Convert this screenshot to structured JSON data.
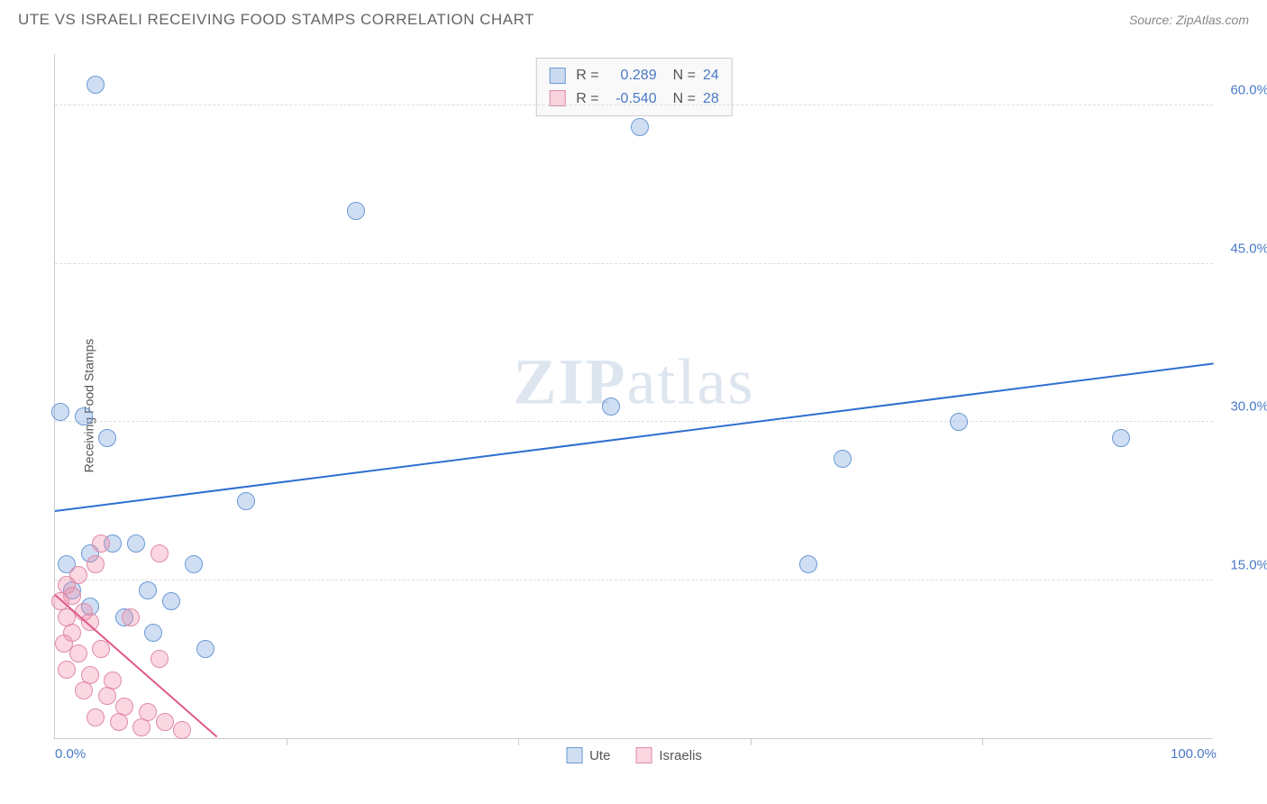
{
  "title": "UTE VS ISRAELI RECEIVING FOOD STAMPS CORRELATION CHART",
  "source": "Source: ZipAtlas.com",
  "watermark": {
    "part1": "ZIP",
    "part2": "atlas"
  },
  "chart": {
    "type": "scatter",
    "ylabel": "Receiving Food Stamps",
    "background_color": "#ffffff",
    "grid_color": "#dddddd",
    "axis_color": "#cccccc",
    "tick_label_color": "#4a7ac7",
    "xlim": [
      0,
      100
    ],
    "ylim": [
      0,
      65
    ],
    "yticks": [
      {
        "value": 15,
        "label": "15.0%"
      },
      {
        "value": 30,
        "label": "30.0%"
      },
      {
        "value": 45,
        "label": "45.0%"
      },
      {
        "value": 60,
        "label": "60.0%"
      }
    ],
    "xtick_positions": [
      20,
      40,
      60,
      80
    ],
    "xaxis_labels": [
      {
        "value": 0,
        "label": "0.0%"
      },
      {
        "value": 100,
        "label": "100.0%"
      }
    ],
    "series": [
      {
        "name": "Ute",
        "color_fill": "rgba(120,160,220,0.35)",
        "color_stroke": "#6a9ad6",
        "marker_radius": 10,
        "trend": {
          "x1": 0,
          "y1": 21.5,
          "x2": 100,
          "y2": 35.5,
          "color": "#2f6fd0",
          "width": 2
        },
        "r": "0.289",
        "n": "24",
        "points": [
          {
            "x": 0.5,
            "y": 31
          },
          {
            "x": 3.5,
            "y": 62
          },
          {
            "x": 2.5,
            "y": 30.5
          },
          {
            "x": 4.5,
            "y": 28.5
          },
          {
            "x": 26,
            "y": 50
          },
          {
            "x": 50.5,
            "y": 58
          },
          {
            "x": 48,
            "y": 31.5
          },
          {
            "x": 78,
            "y": 30
          },
          {
            "x": 68,
            "y": 26.5
          },
          {
            "x": 92,
            "y": 28.5
          },
          {
            "x": 65,
            "y": 16.5
          },
          {
            "x": 16.5,
            "y": 22.5
          },
          {
            "x": 7,
            "y": 18.5
          },
          {
            "x": 12,
            "y": 16.5
          },
          {
            "x": 3,
            "y": 17.5
          },
          {
            "x": 5,
            "y": 18.5
          },
          {
            "x": 1.5,
            "y": 14
          },
          {
            "x": 8,
            "y": 14
          },
          {
            "x": 6,
            "y": 11.5
          },
          {
            "x": 10,
            "y": 13
          },
          {
            "x": 8.5,
            "y": 10
          },
          {
            "x": 13,
            "y": 8.5
          },
          {
            "x": 3,
            "y": 12.5
          },
          {
            "x": 1,
            "y": 16.5
          }
        ]
      },
      {
        "name": "Israelis",
        "color_fill": "rgba(240,140,170,0.35)",
        "color_stroke": "#e08aa8",
        "marker_radius": 10,
        "trend": {
          "x1": 0,
          "y1": 13.5,
          "x2": 14,
          "y2": 0,
          "color": "#e05a8a",
          "width": 2
        },
        "r": "-0.540",
        "n": "28",
        "points": [
          {
            "x": 1,
            "y": 14.5
          },
          {
            "x": 1.5,
            "y": 13.5
          },
          {
            "x": 0.5,
            "y": 13
          },
          {
            "x": 2.5,
            "y": 12
          },
          {
            "x": 1,
            "y": 11.5
          },
          {
            "x": 3,
            "y": 11
          },
          {
            "x": 1.5,
            "y": 10
          },
          {
            "x": 0.8,
            "y": 9
          },
          {
            "x": 4,
            "y": 18.5
          },
          {
            "x": 3.5,
            "y": 16.5
          },
          {
            "x": 9,
            "y": 17.5
          },
          {
            "x": 6.5,
            "y": 11.5
          },
          {
            "x": 2,
            "y": 8
          },
          {
            "x": 4,
            "y": 8.5
          },
          {
            "x": 1,
            "y": 6.5
          },
          {
            "x": 3,
            "y": 6
          },
          {
            "x": 5,
            "y": 5.5
          },
          {
            "x": 2.5,
            "y": 4.5
          },
          {
            "x": 4.5,
            "y": 4
          },
          {
            "x": 6,
            "y": 3
          },
          {
            "x": 8,
            "y": 2.5
          },
          {
            "x": 3.5,
            "y": 2
          },
          {
            "x": 5.5,
            "y": 1.5
          },
          {
            "x": 7.5,
            "y": 1
          },
          {
            "x": 9.5,
            "y": 1.5
          },
          {
            "x": 11,
            "y": 0.8
          },
          {
            "x": 9,
            "y": 7.5
          },
          {
            "x": 2,
            "y": 15.5
          }
        ]
      }
    ]
  },
  "top_legend": {
    "rows": [
      {
        "swatch_fill": "rgba(120,160,220,0.35)",
        "swatch_stroke": "#6a9ad6",
        "r_label": "R =",
        "r_value": "0.289",
        "n_label": "N =",
        "n_value": "24"
      },
      {
        "swatch_fill": "rgba(240,140,170,0.35)",
        "swatch_stroke": "#e08aa8",
        "r_label": "R =",
        "r_value": "-0.540",
        "n_label": "N =",
        "n_value": "28"
      }
    ]
  },
  "bottom_legend": {
    "items": [
      {
        "swatch_fill": "rgba(120,160,220,0.35)",
        "swatch_stroke": "#6a9ad6",
        "label": "Ute"
      },
      {
        "swatch_fill": "rgba(240,140,170,0.35)",
        "swatch_stroke": "#e08aa8",
        "label": "Israelis"
      }
    ]
  }
}
